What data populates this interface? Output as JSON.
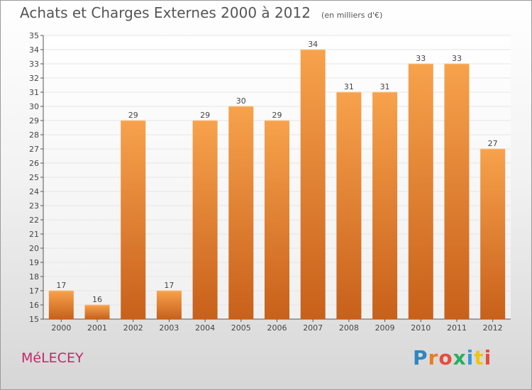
{
  "title": "Achats et Charges Externes 2000 à 2012",
  "unit": "(en milliers d'€)",
  "commune": "MéLECEY",
  "brand": {
    "text": "Proxiti",
    "letter_colors": [
      "#2e86c1",
      "#e67e22",
      "#e74c3c",
      "#27ae60",
      "#3498db",
      "#f1c40f",
      "#e74c3c"
    ]
  },
  "colors": {
    "bar_light": "#f7a24c",
    "bar_dark": "#c8601a",
    "axis": "#555555",
    "grid": "#e6e6e6",
    "commune": "#c5276a"
  },
  "chart_data": {
    "type": "bar",
    "title": "Achats et Charges Externes 2000 à 2012",
    "xlabel": "",
    "ylabel": "",
    "categories": [
      "2000",
      "2001",
      "2002",
      "2003",
      "2004",
      "2005",
      "2006",
      "2007",
      "2008",
      "2009",
      "2010",
      "2011",
      "2012"
    ],
    "values": [
      17,
      16,
      29,
      17,
      29,
      30,
      29,
      34,
      31,
      31,
      33,
      33,
      27
    ],
    "ylim": [
      15,
      35
    ],
    "yticks": [
      15,
      16,
      17,
      18,
      19,
      20,
      21,
      22,
      23,
      24,
      25,
      26,
      27,
      28,
      29,
      30,
      31,
      32,
      33,
      34,
      35
    ],
    "grid": true,
    "legend": "none"
  }
}
